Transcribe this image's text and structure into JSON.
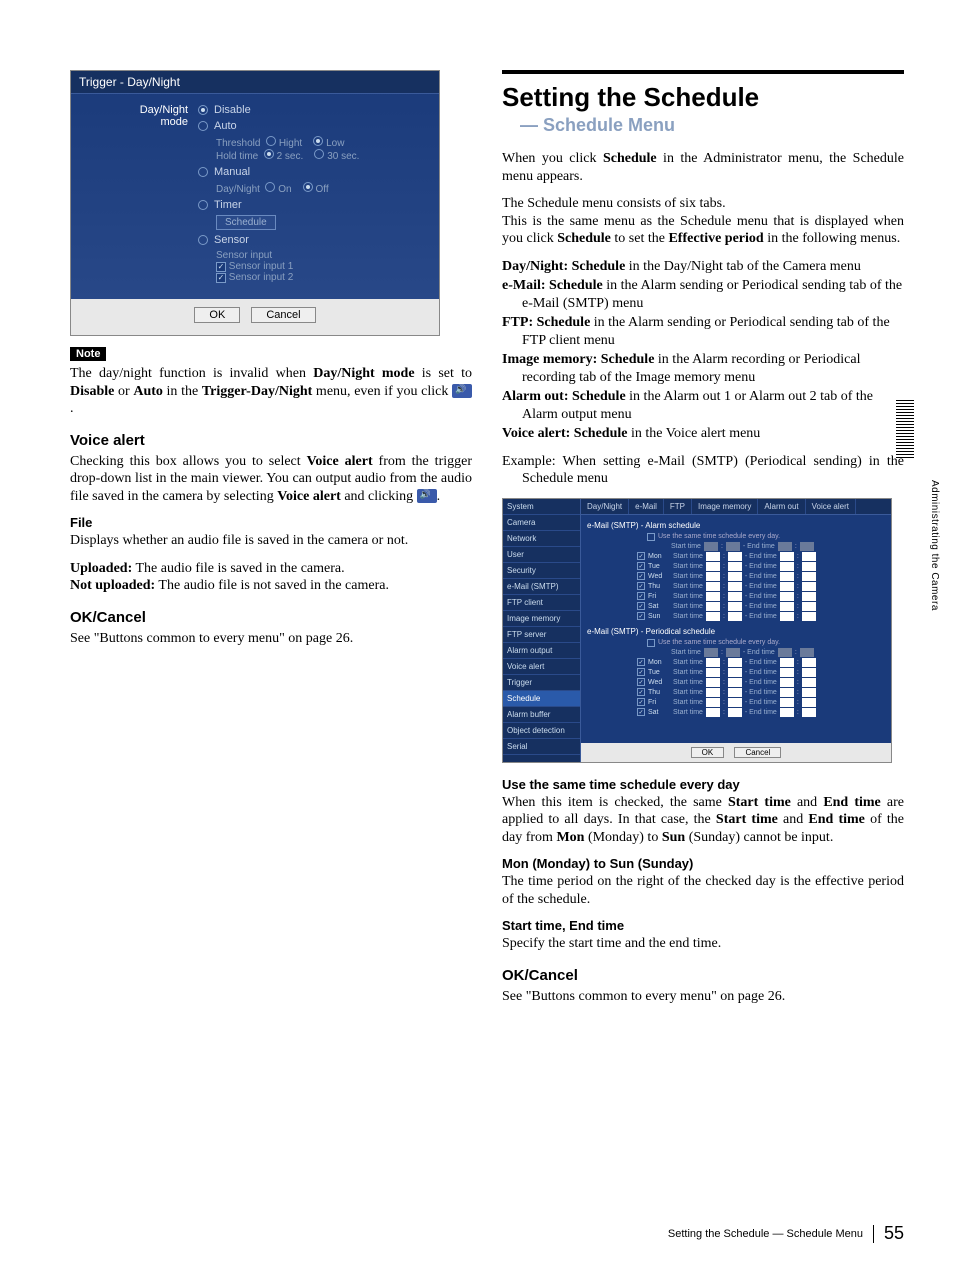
{
  "page_number": "55",
  "side_label": "Administrating the Camera",
  "footer_text": "Setting the Schedule — Schedule Menu",
  "left": {
    "trigger": {
      "title": "Trigger - Day/Night",
      "mode_label": "Day/Night\nmode",
      "opts": {
        "disable": "Disable",
        "auto": "Auto",
        "threshold": "Threshold",
        "high": "Hight",
        "low": "Low",
        "holdtime": "Hold time",
        "sec2": "2 sec.",
        "sec30": "30 sec.",
        "manual": "Manual",
        "daynight": "Day/Night",
        "on": "On",
        "off": "Off",
        "timer": "Timer",
        "schedule_btn": "Schedule",
        "sensor": "Sensor",
        "sensor_input": "Sensor input",
        "si1": "Sensor input 1",
        "si2": "Sensor input 2"
      },
      "ok": "OK",
      "cancel": "Cancel"
    },
    "note_label": "Note",
    "note_text_1": "The day/night function is invalid when ",
    "note_b1": "Day/Night mode",
    "note_text_2": " is set to ",
    "note_b2": "Disable",
    "note_or": " or ",
    "note_b3": "Auto",
    "note_text_3": " in the ",
    "note_b4": "Trigger-Day/Night",
    "note_text_4": " menu, even if you click ",
    "va_h": "Voice alert",
    "va_p1a": "Checking this box allows you to select ",
    "va_p1b": "Voice alert",
    "va_p1c": " from the trigger drop-down list in the main viewer. You can output audio from the audio file saved in the camera by selecting ",
    "va_p1d": "Voice alert",
    "va_p1e": " and clicking ",
    "file_h": "File",
    "file_p": "Displays whether an audio file is saved in the camera or not.",
    "up_b": "Uploaded:",
    "up_t": " The audio file is saved in the camera.",
    "nup_b": "Not uploaded:",
    "nup_t": " The audio file is not saved in the camera.",
    "okc_h": "OK/Cancel",
    "okc_p": "See \"Buttons common to every menu\" on page 26."
  },
  "right": {
    "h1": "Setting the Schedule",
    "h2": "— Schedule Menu",
    "p1a": "When you click ",
    "p1b": "Schedule",
    "p1c": " in the Administrator menu, the Schedule menu appears.",
    "p2": "The Schedule menu consists of six tabs.",
    "p3a": "This is the same menu as the Schedule menu that is displayed when you click ",
    "p3b": "Schedule",
    "p3c": " to set the ",
    "p3d": "Effective period",
    "p3e": " in the following menus.",
    "defs": [
      {
        "b": "Day/Night: Schedule",
        "t": " in the Day/Night tab of the Camera menu"
      },
      {
        "b": "e-Mail: Schedule",
        "t": " in the Alarm sending or Periodical sending tab of the e-Mail (SMTP) menu"
      },
      {
        "b": "FTP: Schedule",
        "t": " in the Alarm sending or Periodical sending tab of the FTP client menu"
      },
      {
        "b": "Image memory: Schedule",
        "t": " in the Alarm recording or Periodical recording tab of the Image memory menu"
      },
      {
        "b": "Alarm out: Schedule",
        "t": " in the Alarm out 1 or Alarm out 2 tab of the Alarm output menu"
      },
      {
        "b": "Voice alert: Schedule",
        "t": " in the Voice alert menu"
      }
    ],
    "example": "Example: When setting e-Mail (SMTP) (Periodical sending) in the Schedule menu",
    "sched": {
      "side": [
        "System",
        "Camera",
        "Network",
        "User",
        "Security",
        "e-Mail (SMTP)",
        "FTP client",
        "Image memory",
        "FTP server",
        "Alarm output",
        "Voice alert",
        "Trigger",
        "Schedule",
        "Alarm buffer",
        "Object detection",
        "Serial"
      ],
      "active_index": 12,
      "tabs": [
        "Day/Night",
        "e-Mail",
        "FTP",
        "Image memory",
        "Alarm out",
        "Voice alert"
      ],
      "sec1": "e-Mail (SMTP) - Alarm schedule",
      "sec2": "e-Mail (SMTP) - Periodical schedule",
      "same": "Use the same time schedule every day.",
      "days": [
        "Mon",
        "Tue",
        "Wed",
        "Thu",
        "Fri",
        "Sat",
        "Sun"
      ],
      "start": "Start time",
      "end": "- End time",
      "v_sh": "01",
      "v_sm": "00",
      "v_eh": "24",
      "v_em": "00",
      "ok": "OK",
      "cancel": "Cancel"
    },
    "use_h": "Use the same time schedule every day",
    "use_p_a": "When this item is checked, the same ",
    "use_p_b": "Start time",
    "use_p_c": " and ",
    "use_p_d": "End time",
    "use_p_e": " are applied to all days. In that case, the ",
    "use_p_f": "Start time",
    "use_p_g": " and ",
    "use_p_h": "End time",
    "use_p_i": " of the day from ",
    "use_p_j": "Mon",
    "use_p_k": " (Monday) to ",
    "use_p_l": "Sun",
    "use_p_m": " (Sunday) cannot be input.",
    "mon_h": "Mon (Monday) to Sun (Sunday)",
    "mon_p": "The time period on the right of the checked day is the effective period of the schedule.",
    "st_h": "Start time, End time",
    "st_p": "Specify the start time and the end time.",
    "okc2_h": "OK/Cancel",
    "okc2_p": "See \"Buttons common to every menu\" on page 26."
  }
}
